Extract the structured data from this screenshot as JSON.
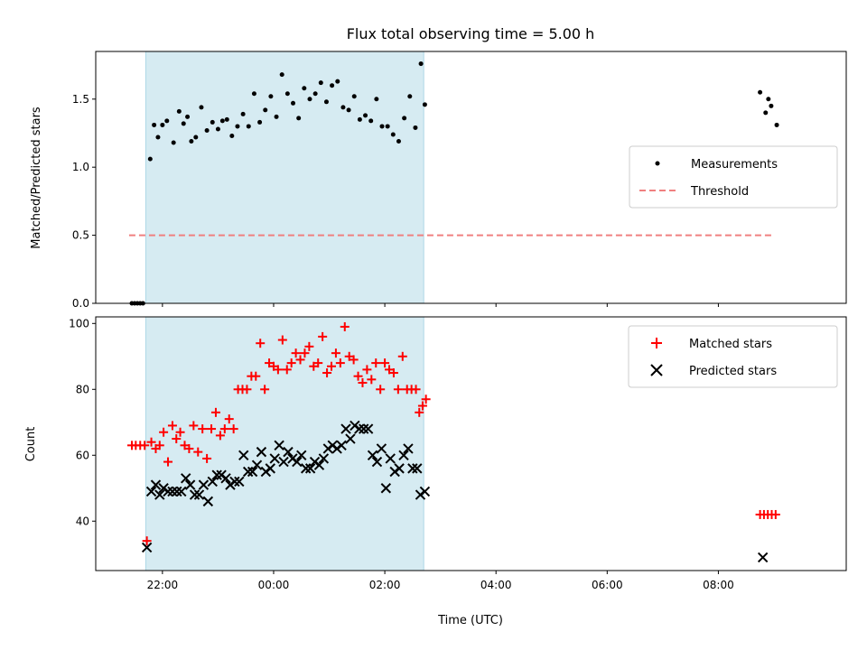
{
  "chart_data": [
    {
      "type": "scatter",
      "title": "Flux total observing time = 5.00 h",
      "ylabel": "Matched/Predicted stars",
      "xlabel": "",
      "ylim": [
        0,
        1.85
      ],
      "yticks": [
        0.0,
        0.5,
        1.0,
        1.5
      ],
      "ytick_labels": [
        "0.0",
        "0.5",
        "1.0",
        "1.5"
      ],
      "legend": {
        "position": "center-right",
        "entries": [
          "Measurements",
          "Threshold"
        ]
      },
      "shaded_span": {
        "x_start": 21.7,
        "x_end": 26.7,
        "color": "#add8e6"
      },
      "threshold": {
        "name": "Threshold",
        "y": 0.5,
        "x_start": 21.4,
        "x_end": 33.0,
        "color": "#f08080"
      },
      "series": [
        {
          "name": "Measurements",
          "color": "#000000",
          "marker": "dot",
          "x": [
            21.45,
            21.5,
            21.55,
            21.6,
            21.65,
            21.78,
            21.85,
            21.92,
            22.0,
            22.08,
            22.2,
            22.3,
            22.38,
            22.45,
            22.52,
            22.6,
            22.7,
            22.8,
            22.9,
            23.0,
            23.08,
            23.16,
            23.25,
            23.35,
            23.45,
            23.55,
            23.65,
            23.75,
            23.85,
            23.95,
            24.05,
            24.15,
            24.25,
            24.35,
            24.45,
            24.55,
            24.65,
            24.75,
            24.85,
            24.95,
            25.05,
            25.15,
            25.25,
            25.35,
            25.45,
            25.55,
            25.65,
            25.75,
            25.85,
            25.95,
            26.05,
            26.15,
            26.25,
            26.35,
            26.45,
            26.55,
            26.65,
            26.72,
            32.75,
            32.85,
            32.9,
            32.95,
            33.05
          ],
          "y": [
            0,
            0,
            0,
            0,
            0,
            1.06,
            1.31,
            1.22,
            1.31,
            1.34,
            1.18,
            1.41,
            1.32,
            1.37,
            1.19,
            1.22,
            1.44,
            1.27,
            1.33,
            1.28,
            1.34,
            1.35,
            1.23,
            1.3,
            1.39,
            1.3,
            1.54,
            1.33,
            1.42,
            1.52,
            1.37,
            1.68,
            1.54,
            1.47,
            1.36,
            1.58,
            1.5,
            1.54,
            1.62,
            1.48,
            1.6,
            1.63,
            1.44,
            1.42,
            1.52,
            1.35,
            1.38,
            1.34,
            1.5,
            1.3,
            1.3,
            1.24,
            1.19,
            1.36,
            1.52,
            1.29,
            1.76,
            1.46,
            1.55,
            1.4,
            1.5,
            1.45,
            1.31
          ],
          "x_note": "hours since 00:00 of first day; values > 24 are the next day"
        }
      ]
    },
    {
      "type": "scatter",
      "title": "",
      "ylabel": "Count",
      "xlabel": "Time (UTC)",
      "ylim": [
        25,
        102
      ],
      "yticks": [
        40,
        60,
        80,
        100
      ],
      "ytick_labels": [
        "40",
        "60",
        "80",
        "100"
      ],
      "xlim": [
        20.8,
        34.3
      ],
      "xticks": [
        22,
        24,
        26,
        28,
        30,
        32
      ],
      "xtick_labels": [
        "22:00",
        "00:00",
        "02:00",
        "04:00",
        "06:00",
        "08:00"
      ],
      "legend": {
        "position": "top-right",
        "entries": [
          "Matched stars",
          "Predicted stars"
        ]
      },
      "shaded_span": {
        "x_start": 21.7,
        "x_end": 26.7,
        "color": "#add8e6"
      },
      "series": [
        {
          "name": "Matched stars",
          "color": "#ff0000",
          "marker": "plus",
          "x": [
            21.45,
            21.52,
            21.6,
            21.68,
            21.72,
            21.8,
            21.88,
            21.95,
            22.02,
            22.1,
            22.18,
            22.25,
            22.32,
            22.4,
            22.48,
            22.56,
            22.64,
            22.72,
            22.8,
            22.88,
            22.96,
            23.04,
            23.12,
            23.2,
            23.28,
            23.36,
            23.44,
            23.52,
            23.6,
            23.68,
            23.76,
            23.84,
            23.92,
            24.0,
            24.08,
            24.16,
            24.24,
            24.32,
            24.4,
            24.48,
            24.56,
            24.64,
            24.72,
            24.8,
            24.88,
            24.96,
            25.04,
            25.12,
            25.2,
            25.28,
            25.36,
            25.44,
            25.52,
            25.6,
            25.68,
            25.76,
            25.84,
            25.92,
            26.0,
            26.08,
            26.16,
            26.24,
            26.32,
            26.4,
            26.48,
            26.56,
            26.62,
            26.68,
            26.74,
            32.75,
            32.82,
            32.89,
            32.96,
            33.03
          ],
          "y": [
            63,
            63,
            63,
            63,
            34,
            64,
            62,
            63,
            67,
            58,
            69,
            65,
            67,
            63,
            62,
            69,
            61,
            68,
            59,
            68,
            73,
            66,
            68,
            71,
            68,
            80,
            80,
            80,
            84,
            84,
            94,
            80,
            88,
            87,
            86,
            95,
            86,
            88,
            91,
            89,
            91,
            93,
            87,
            88,
            96,
            85,
            87,
            91,
            88,
            99,
            90,
            89,
            84,
            82,
            86,
            83,
            88,
            80,
            88,
            86,
            85,
            80,
            90,
            80,
            80,
            80,
            73,
            75,
            77,
            42,
            42,
            42,
            42,
            42
          ]
        },
        {
          "name": "Predicted stars",
          "color": "#000000",
          "marker": "x",
          "x": [
            21.72,
            21.8,
            21.88,
            21.95,
            22.02,
            22.1,
            22.18,
            22.26,
            22.34,
            22.42,
            22.5,
            22.58,
            22.66,
            22.74,
            22.82,
            22.9,
            22.98,
            23.06,
            23.14,
            23.22,
            23.3,
            23.38,
            23.46,
            23.54,
            23.62,
            23.7,
            23.78,
            23.86,
            23.94,
            24.02,
            24.1,
            24.18,
            24.26,
            24.34,
            24.42,
            24.5,
            24.58,
            24.66,
            24.74,
            24.82,
            24.9,
            24.98,
            25.06,
            25.14,
            25.22,
            25.3,
            25.38,
            25.46,
            25.54,
            25.62,
            25.7,
            25.78,
            25.86,
            25.94,
            26.02,
            26.1,
            26.18,
            26.26,
            26.34,
            26.42,
            26.5,
            26.58,
            26.64,
            26.72,
            32.8
          ],
          "y": [
            32,
            49,
            51,
            48,
            50,
            49,
            49,
            49,
            49,
            53,
            51,
            48,
            48,
            51,
            46,
            52,
            54,
            54,
            53,
            51,
            52,
            52,
            60,
            55,
            55,
            57,
            61,
            55,
            56,
            59,
            63,
            58,
            61,
            59,
            58,
            60,
            56,
            56,
            58,
            57,
            59,
            62,
            63,
            62,
            63,
            68,
            65,
            69,
            68,
            68,
            68,
            60,
            58,
            62,
            50,
            59,
            55,
            56,
            60,
            62,
            56,
            56,
            48,
            49,
            29
          ]
        }
      ]
    }
  ]
}
